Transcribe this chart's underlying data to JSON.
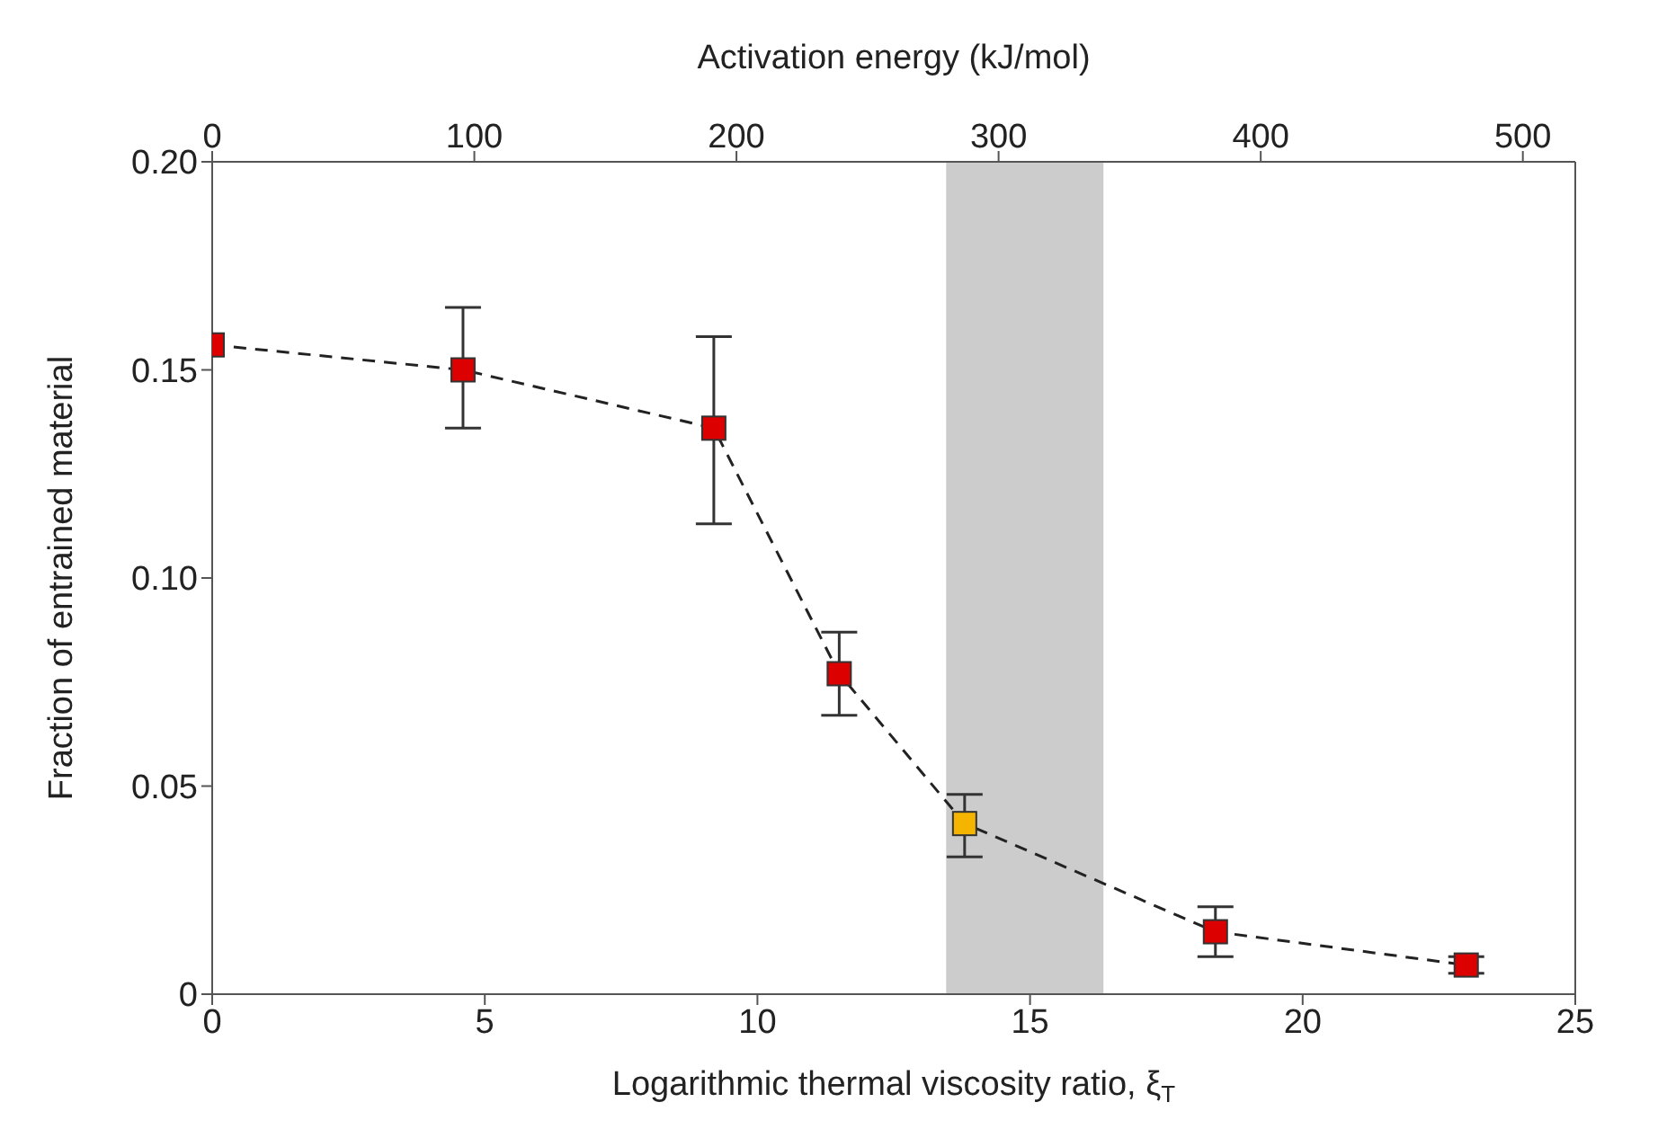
{
  "chart_data": {
    "type": "line",
    "xlabel": "Logarithmic thermal viscosity ratio, ξ$_{T}$",
    "ylabel": "Fraction of entrained material",
    "x2label": "Activation energy (kJ/mol)",
    "x": [
      0,
      4.6,
      9.2,
      11.5,
      13.8,
      18.4,
      23.0
    ],
    "series": [
      {
        "color": "#222222",
        "colors": [
          "#dd0000",
          "#dd0000",
          "#dd0000",
          "#dd0000",
          "#f5b400",
          "#dd0000",
          "#dd0000"
        ],
        "values": [
          0.156,
          0.15,
          0.136,
          0.077,
          0.041,
          0.015,
          0.007
        ],
        "errors": [
          null,
          [
            0.136,
            0.165
          ],
          [
            0.113,
            0.158
          ],
          [
            0.067,
            0.087
          ],
          [
            0.033,
            0.048
          ],
          [
            0.009,
            0.021
          ],
          [
            0.005,
            0.009
          ]
        ]
      }
    ],
    "marker": "square",
    "line_style": "dashed",
    "xlim": [
      0,
      25
    ],
    "xticks": [
      0,
      5,
      10,
      15,
      20,
      25
    ],
    "x2lim": [
      0,
      520
    ],
    "x2ticks": [
      0,
      100,
      200,
      300,
      400,
      500
    ],
    "ylim": [
      0,
      0.2
    ],
    "yticks": [
      0,
      0.05,
      {
        "value": 0.1,
        "label": "0.10"
      },
      0.15,
      {
        "value": 0.2,
        "label": "0.20"
      }
    ],
    "bands": [
      {
        "axis": "x2",
        "from": 280,
        "to": 340,
        "color": "#cccccc"
      }
    ]
  }
}
